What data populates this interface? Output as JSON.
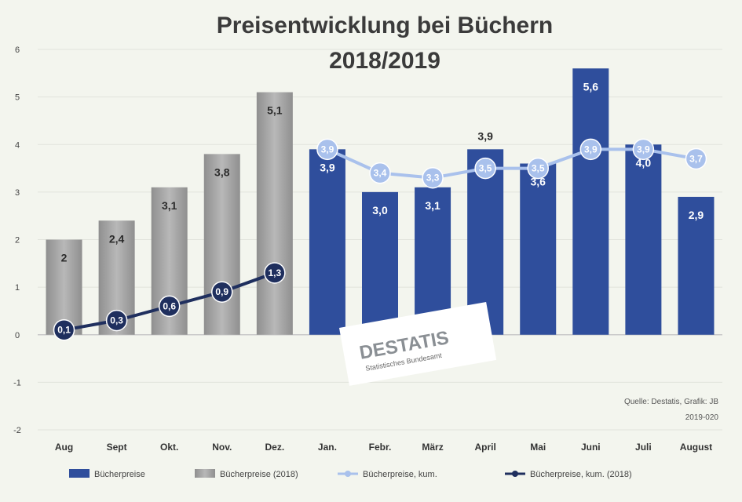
{
  "chart_data": {
    "type": "bar",
    "title_lines": [
      "Preisentwicklung bei Büchern",
      "2018/2019"
    ],
    "categories": [
      "Aug",
      "Sept",
      "Okt.",
      "Nov.",
      "Dez.",
      "Jan.",
      "Febr.",
      "März",
      "April",
      "Mai",
      "Juni",
      "Juli",
      "August"
    ],
    "ylim": [
      -2,
      6
    ],
    "yticks": [
      "6",
      "5",
      "4",
      "3",
      "2",
      "1",
      "0",
      "-1",
      "-2"
    ],
    "series": [
      {
        "name": "Bücherpreise",
        "kind": "bar",
        "color": "#2f4e9c",
        "values": [
          null,
          null,
          null,
          null,
          null,
          3.9,
          3.0,
          3.1,
          3.9,
          3.6,
          5.6,
          4.0,
          2.9
        ],
        "labels": [
          "",
          "",
          "",
          "",
          "",
          "3,9",
          "3,0",
          "3,1",
          "3,9",
          "3,6",
          "5,6",
          "4,0",
          "2,9"
        ]
      },
      {
        "name": "Bücherpreise (2018)",
        "kind": "bar",
        "color": "#9e9e9e",
        "values": [
          2.0,
          2.4,
          3.1,
          3.8,
          5.1,
          null,
          null,
          null,
          null,
          null,
          null,
          null,
          null
        ],
        "labels": [
          "2",
          "2,4",
          "3,1",
          "3,8",
          "5,1",
          "",
          "",
          "",
          "",
          "",
          "",
          "",
          ""
        ]
      },
      {
        "name": "Bücherpreise, kum.",
        "kind": "line",
        "color": "#a9c1ec",
        "values": [
          null,
          null,
          null,
          null,
          null,
          3.9,
          3.4,
          3.3,
          3.5,
          3.5,
          3.9,
          3.9,
          3.7
        ],
        "labels": [
          "",
          "",
          "",
          "",
          "",
          "3,9",
          "3,4",
          "3,3",
          "3,5",
          "3,5",
          "3,9",
          "3,9",
          "3,7"
        ]
      },
      {
        "name": "Bücherpreise, kum. (2018)",
        "kind": "line",
        "color": "#1f2f5e",
        "values": [
          0.1,
          0.3,
          0.6,
          0.9,
          1.3,
          null,
          null,
          null,
          null,
          null,
          null,
          null,
          null
        ],
        "labels": [
          "0,1",
          "0,3",
          "0,6",
          "0,9",
          "1,3",
          "",
          "",
          "",
          "",
          "",
          "",
          "",
          ""
        ]
      }
    ],
    "legend_position": "bottom",
    "grid": true
  },
  "source": {
    "line1": "Quelle: Destatis, Grafik: JB",
    "line2": "2019-020"
  },
  "logo": {
    "text": "DESTATIS",
    "subtitle": "Statistisches Bundesamt"
  }
}
